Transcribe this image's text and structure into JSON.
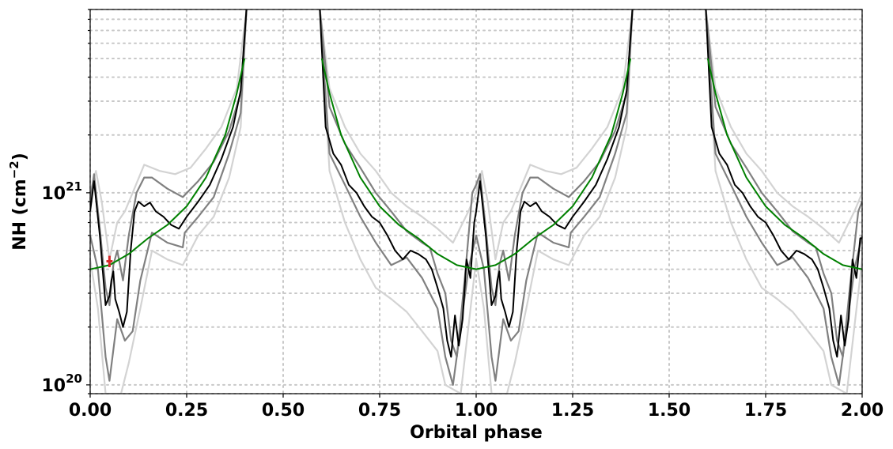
{
  "chart_data": {
    "type": "line",
    "title": "",
    "xlabel": "Orbital phase",
    "ylabel": "NH (cm",
    "ylabel_unit_exponent": "−2",
    "ylabel_close": ")",
    "xlim": [
      0.0,
      2.0
    ],
    "ylim": [
      9e+19,
      9e+21
    ],
    "yscale": "log",
    "grid": true,
    "x_tick_values": [
      0.0,
      0.25,
      0.5,
      0.75,
      1.0,
      1.25,
      1.5,
      1.75,
      2.0
    ],
    "x_tick_labels": [
      "0.00",
      "0.25",
      "0.50",
      "0.75",
      "1.00",
      "1.25",
      "1.50",
      "1.75",
      "2.00"
    ],
    "y_major_ticks": [
      {
        "value": 1e+20,
        "base": "10",
        "exp": "20"
      },
      {
        "value": 1e+21,
        "base": "10",
        "exp": "21"
      }
    ],
    "colors": {
      "median": "#000000",
      "inner_band": "#808080",
      "outer_band": "#d3d3d3",
      "model": "#008000",
      "observation": "#d62728"
    },
    "series": [
      {
        "role": "median",
        "x": [
          0.0,
          0.01,
          0.025,
          0.04,
          0.05,
          0.055,
          0.06,
          0.065,
          0.075,
          0.085,
          0.095,
          0.105,
          0.115,
          0.125,
          0.14,
          0.155,
          0.17,
          0.19,
          0.21,
          0.23,
          0.25,
          0.28,
          0.31,
          0.34,
          0.37,
          0.39,
          0.405
        ],
        "y": [
          8e+20,
          1.15e+21,
          6e+20,
          2.6e+20,
          2.9e+20,
          3.5e+20,
          3.9e+20,
          2.8e+20,
          2.4e+20,
          2e+20,
          2.4e+20,
          5e+20,
          8e+20,
          9e+20,
          8.5e+20,
          8.9e+20,
          8e+20,
          7.5e+20,
          6.8e+20,
          6.5e+20,
          7.5e+20,
          9e+20,
          1.1e+21,
          1.5e+21,
          2.2e+21,
          3.4e+21,
          9e+21
        ]
      },
      {
        "role": "median",
        "x": [
          0.595,
          0.61,
          0.63,
          0.65,
          0.67,
          0.69,
          0.71,
          0.73,
          0.75,
          0.77,
          0.79,
          0.81,
          0.83,
          0.85,
          0.87,
          0.885,
          0.9,
          0.915,
          0.925,
          0.935,
          0.945,
          0.955,
          0.965,
          0.975,
          0.985,
          0.995,
          1.0,
          1.01,
          1.025,
          1.04,
          1.05,
          1.055,
          1.06,
          1.065,
          1.075,
          1.085,
          1.095,
          1.105,
          1.115,
          1.125,
          1.14,
          1.155,
          1.17,
          1.19,
          1.21,
          1.23,
          1.25,
          1.28,
          1.31,
          1.34,
          1.37,
          1.39,
          1.405
        ],
        "y": [
          9e+21,
          2.2e+21,
          1.6e+21,
          1.4e+21,
          1.1e+21,
          1e+21,
          8.5e+20,
          7.5e+20,
          7e+20,
          6e+20,
          5e+20,
          4.5e+20,
          5e+20,
          4.8e+20,
          4.5e+20,
          4e+20,
          3.2e+20,
          2.5e+20,
          1.7e+20,
          1.4e+20,
          2.3e+20,
          1.6e+20,
          2.2e+20,
          4.5e+20,
          3.6e+20,
          7e+20,
          8e+20,
          1.15e+21,
          6e+20,
          2.6e+20,
          2.9e+20,
          3.5e+20,
          3.9e+20,
          2.8e+20,
          2.4e+20,
          2e+20,
          2.4e+20,
          5e+20,
          8e+20,
          9e+20,
          8.5e+20,
          8.9e+20,
          8e+20,
          7.5e+20,
          6.8e+20,
          6.5e+20,
          7.5e+20,
          9e+20,
          1.1e+21,
          1.5e+21,
          2.2e+21,
          3.4e+21,
          9e+21
        ]
      },
      {
        "role": "median",
        "x": [
          1.595,
          1.61,
          1.63,
          1.65,
          1.67,
          1.69,
          1.71,
          1.73,
          1.75,
          1.77,
          1.79,
          1.81,
          1.83,
          1.85,
          1.87,
          1.885,
          1.9,
          1.915,
          1.925,
          1.935,
          1.945,
          1.955,
          1.965,
          1.975,
          1.985,
          1.995,
          2.0
        ],
        "y": [
          9e+21,
          2.2e+21,
          1.6e+21,
          1.4e+21,
          1.1e+21,
          1e+21,
          8.5e+20,
          7.5e+20,
          7e+20,
          6e+20,
          5e+20,
          4.5e+20,
          5e+20,
          4.8e+20,
          4.5e+20,
          4e+20,
          3.2e+20,
          2.5e+20,
          1.7e+20,
          1.4e+20,
          2.3e+20,
          1.6e+20,
          2.2e+20,
          4.5e+20,
          3.6e+20,
          5.8e+20,
          5.8e+20
        ]
      },
      {
        "role": "inner_band",
        "x": [
          0.0,
          0.01,
          0.025,
          0.04,
          0.05,
          0.06,
          0.07,
          0.085,
          0.1,
          0.12,
          0.14,
          0.16,
          0.2,
          0.24,
          0.28,
          0.32,
          0.36,
          0.39,
          0.405
        ],
        "y": [
          9e+20,
          1.25e+21,
          6.5e+20,
          3.2e+20,
          2.6e+20,
          4.2e+20,
          5e+20,
          3.5e+20,
          6e+20,
          1e+21,
          1.2e+21,
          1.2e+21,
          1.05e+21,
          9.5e+20,
          1.15e+21,
          1.45e+21,
          2.1e+21,
          3.3e+21,
          9e+21
        ]
      },
      {
        "role": "inner_band",
        "x": [
          0.0,
          0.02,
          0.04,
          0.05,
          0.07,
          0.09,
          0.11,
          0.13,
          0.16,
          0.2,
          0.24,
          0.245,
          0.28,
          0.32,
          0.36,
          0.39,
          0.405
        ],
        "y": [
          6e+20,
          4e+20,
          1.4e+20,
          1.05e+20,
          2.2e+20,
          1.7e+20,
          1.9e+20,
          3.5e+20,
          6.2e+20,
          5.5e+20,
          5.2e+20,
          6.2e+20,
          7.5e+20,
          9.5e+20,
          1.6e+21,
          2.6e+21,
          9e+21
        ]
      },
      {
        "role": "inner_band",
        "x": [
          0.595,
          0.62,
          0.66,
          0.7,
          0.74,
          0.78,
          0.82,
          0.86,
          0.88,
          0.9,
          0.92,
          0.935,
          0.95,
          0.97,
          0.99,
          1.0,
          1.01,
          1.025,
          1.04,
          1.05,
          1.06,
          1.07,
          1.085,
          1.1,
          1.12,
          1.14,
          1.16,
          1.2,
          1.24,
          1.28,
          1.32,
          1.36,
          1.39,
          1.405
        ],
        "y": [
          9e+21,
          2.8e+21,
          1.8e+21,
          1.35e+21,
          1e+21,
          8e+20,
          6.3e+20,
          5.5e+20,
          5.2e+20,
          3.8e+20,
          3e+20,
          1.7e+20,
          1.4e+20,
          3.5e+20,
          1e+21,
          1.1e+21,
          1.25e+21,
          6.5e+20,
          3.2e+20,
          2.6e+20,
          4.2e+20,
          5e+20,
          3.5e+20,
          6e+20,
          1e+21,
          1.2e+21,
          1.2e+21,
          1.05e+21,
          9.5e+20,
          1.15e+21,
          1.45e+21,
          2.1e+21,
          3.3e+21,
          9e+21
        ]
      },
      {
        "role": "inner_band",
        "x": [
          0.595,
          0.62,
          0.66,
          0.7,
          0.74,
          0.78,
          0.82,
          0.86,
          0.9,
          0.92,
          0.94,
          0.96,
          0.98,
          1.0,
          1.02,
          1.04,
          1.05,
          1.07,
          1.09,
          1.11,
          1.13,
          1.16,
          1.2,
          1.24,
          1.245,
          1.28,
          1.32,
          1.36,
          1.39,
          1.405
        ],
        "y": [
          9e+21,
          1.6e+21,
          1.1e+21,
          7.5e+20,
          5.5e+20,
          4.2e+20,
          4.6e+20,
          3.6e+20,
          2.5e+20,
          1.4e+20,
          1e+20,
          2e+20,
          4e+20,
          6e+20,
          4e+20,
          1.4e+20,
          1.05e+20,
          2.2e+20,
          1.7e+20,
          1.9e+20,
          3.5e+20,
          6.2e+20,
          5.5e+20,
          5.2e+20,
          6.2e+20,
          7.5e+20,
          9.5e+20,
          1.6e+21,
          2.6e+21,
          9e+21
        ]
      },
      {
        "role": "inner_band",
        "x": [
          1.595,
          1.62,
          1.66,
          1.7,
          1.74,
          1.78,
          1.82,
          1.86,
          1.88,
          1.9,
          1.92,
          1.935,
          1.95,
          1.97,
          1.99,
          2.0
        ],
        "y": [
          9e+21,
          2.8e+21,
          1.8e+21,
          1.35e+21,
          1e+21,
          8e+20,
          6.3e+20,
          5.5e+20,
          5.2e+20,
          3.8e+20,
          3e+20,
          1.7e+20,
          1.4e+20,
          3.5e+20,
          8e+20,
          9e+20
        ]
      },
      {
        "role": "inner_band",
        "x": [
          1.595,
          1.62,
          1.66,
          1.7,
          1.74,
          1.78,
          1.82,
          1.86,
          1.9,
          1.92,
          1.94,
          1.96,
          1.98,
          2.0
        ],
        "y": [
          9e+21,
          1.6e+21,
          1.1e+21,
          7.5e+20,
          5.5e+20,
          4.2e+20,
          4.6e+20,
          3.6e+20,
          2.5e+20,
          1.4e+20,
          1e+20,
          2e+20,
          4e+20,
          6e+20
        ]
      },
      {
        "role": "outer_band",
        "x": [
          0.0,
          0.015,
          0.03,
          0.05,
          0.07,
          0.09,
          0.11,
          0.14,
          0.18,
          0.22,
          0.26,
          0.3,
          0.34,
          0.38,
          0.405
        ],
        "y": [
          1e+21,
          1.3e+21,
          9e+20,
          4.5e+20,
          7e+20,
          8e+20,
          1e+21,
          1.4e+21,
          1.3e+21,
          1.25e+21,
          1.35e+21,
          1.7e+21,
          2.2e+21,
          3.5e+21,
          9e+21
        ]
      },
      {
        "role": "outer_band",
        "x": [
          0.0,
          0.02,
          0.04,
          0.06,
          0.08,
          0.1,
          0.13,
          0.16,
          0.2,
          0.24,
          0.28,
          0.32,
          0.36,
          0.39,
          0.405
        ],
        "y": [
          4.5e+20,
          2.5e+20,
          9e+19,
          9e+19,
          9e+19,
          1.3e+20,
          2.5e+20,
          5e+20,
          4.5e+20,
          4.2e+20,
          6e+20,
          7.5e+20,
          1.2e+21,
          2.2e+21,
          9e+21
        ]
      },
      {
        "role": "outer_band",
        "x": [
          0.595,
          0.62,
          0.66,
          0.7,
          0.74,
          0.78,
          0.82,
          0.86,
          0.9,
          0.94,
          0.98,
          1.0,
          1.015,
          1.03,
          1.05,
          1.07,
          1.09,
          1.11,
          1.14,
          1.18,
          1.22,
          1.26,
          1.3,
          1.34,
          1.38,
          1.405
        ],
        "y": [
          9e+21,
          3.5e+21,
          2.2e+21,
          1.6e+21,
          1.3e+21,
          1e+21,
          8.5e+20,
          7.5e+20,
          6.5e+20,
          5.5e+20,
          8e+20,
          1e+21,
          1.3e+21,
          9e+20,
          4.5e+20,
          7e+20,
          8e+20,
          1e+21,
          1.4e+21,
          1.3e+21,
          1.25e+21,
          1.35e+21,
          1.7e+21,
          2.2e+21,
          3.5e+21,
          9e+21
        ]
      },
      {
        "role": "outer_band",
        "x": [
          0.595,
          0.62,
          0.66,
          0.7,
          0.74,
          0.78,
          0.82,
          0.86,
          0.9,
          0.92,
          0.96,
          1.0,
          1.02,
          1.04,
          1.06,
          1.08,
          1.1,
          1.13,
          1.16,
          1.2,
          1.24,
          1.28,
          1.32,
          1.36,
          1.39,
          1.405
        ],
        "y": [
          9e+21,
          1.3e+21,
          7e+20,
          4.5e+20,
          3.2e+20,
          2.8e+20,
          2.4e+20,
          1.9e+20,
          1.5e+20,
          1e+20,
          9e+19,
          4.5e+20,
          2.5e+20,
          9e+19,
          9e+19,
          9e+19,
          1.3e+20,
          2.5e+20,
          5e+20,
          4.5e+20,
          4.2e+20,
          6e+20,
          7.5e+20,
          1.2e+21,
          2.2e+21,
          9e+21
        ]
      },
      {
        "role": "outer_band",
        "x": [
          1.595,
          1.62,
          1.66,
          1.7,
          1.74,
          1.78,
          1.82,
          1.86,
          1.9,
          1.94,
          1.98,
          2.0
        ],
        "y": [
          9e+21,
          3.5e+21,
          2.2e+21,
          1.6e+21,
          1.3e+21,
          1e+21,
          8.5e+20,
          7.5e+20,
          6.5e+20,
          5.5e+20,
          8e+20,
          1e+21
        ]
      },
      {
        "role": "outer_band",
        "x": [
          1.595,
          1.62,
          1.66,
          1.7,
          1.74,
          1.78,
          1.82,
          1.86,
          1.9,
          1.92,
          1.96,
          2.0
        ],
        "y": [
          9e+21,
          1.3e+21,
          7e+20,
          4.5e+20,
          3.2e+20,
          2.8e+20,
          2.4e+20,
          1.9e+20,
          1.5e+20,
          1e+20,
          9e+19,
          4.5e+20
        ]
      },
      {
        "role": "model",
        "x": [
          0.0,
          0.05,
          0.1,
          0.15,
          0.2,
          0.25,
          0.3,
          0.35,
          0.38,
          0.4
        ],
        "y": [
          4e+20,
          4.2e+20,
          4.8e+20,
          5.8e+20,
          6.8e+20,
          8.5e+20,
          1.2e+21,
          2e+21,
          3.3e+21,
          5e+21
        ]
      },
      {
        "role": "model",
        "x": [
          0.6,
          0.62,
          0.65,
          0.7,
          0.75,
          0.8,
          0.85,
          0.9,
          0.95,
          1.0,
          1.05,
          1.1,
          1.15,
          1.2,
          1.25,
          1.3,
          1.35,
          1.38,
          1.4
        ],
        "y": [
          5e+21,
          3.3e+21,
          2e+21,
          1.2e+21,
          8.5e+20,
          6.8e+20,
          5.8e+20,
          4.8e+20,
          4.2e+20,
          4e+20,
          4.2e+20,
          4.8e+20,
          5.8e+20,
          6.8e+20,
          8.5e+20,
          1.2e+21,
          2e+21,
          3.3e+21,
          5e+21
        ]
      },
      {
        "role": "model",
        "x": [
          1.6,
          1.62,
          1.65,
          1.7,
          1.75,
          1.8,
          1.85,
          1.9,
          1.95,
          2.0
        ],
        "y": [
          5e+21,
          3.3e+21,
          2e+21,
          1.2e+21,
          8.5e+20,
          6.8e+20,
          5.8e+20,
          4.8e+20,
          4.2e+20,
          4e+20
        ]
      }
    ],
    "observation": {
      "x": 0.05,
      "y": 4.4e+20,
      "xerr": 0.008,
      "yerr": 3e+19
    }
  }
}
